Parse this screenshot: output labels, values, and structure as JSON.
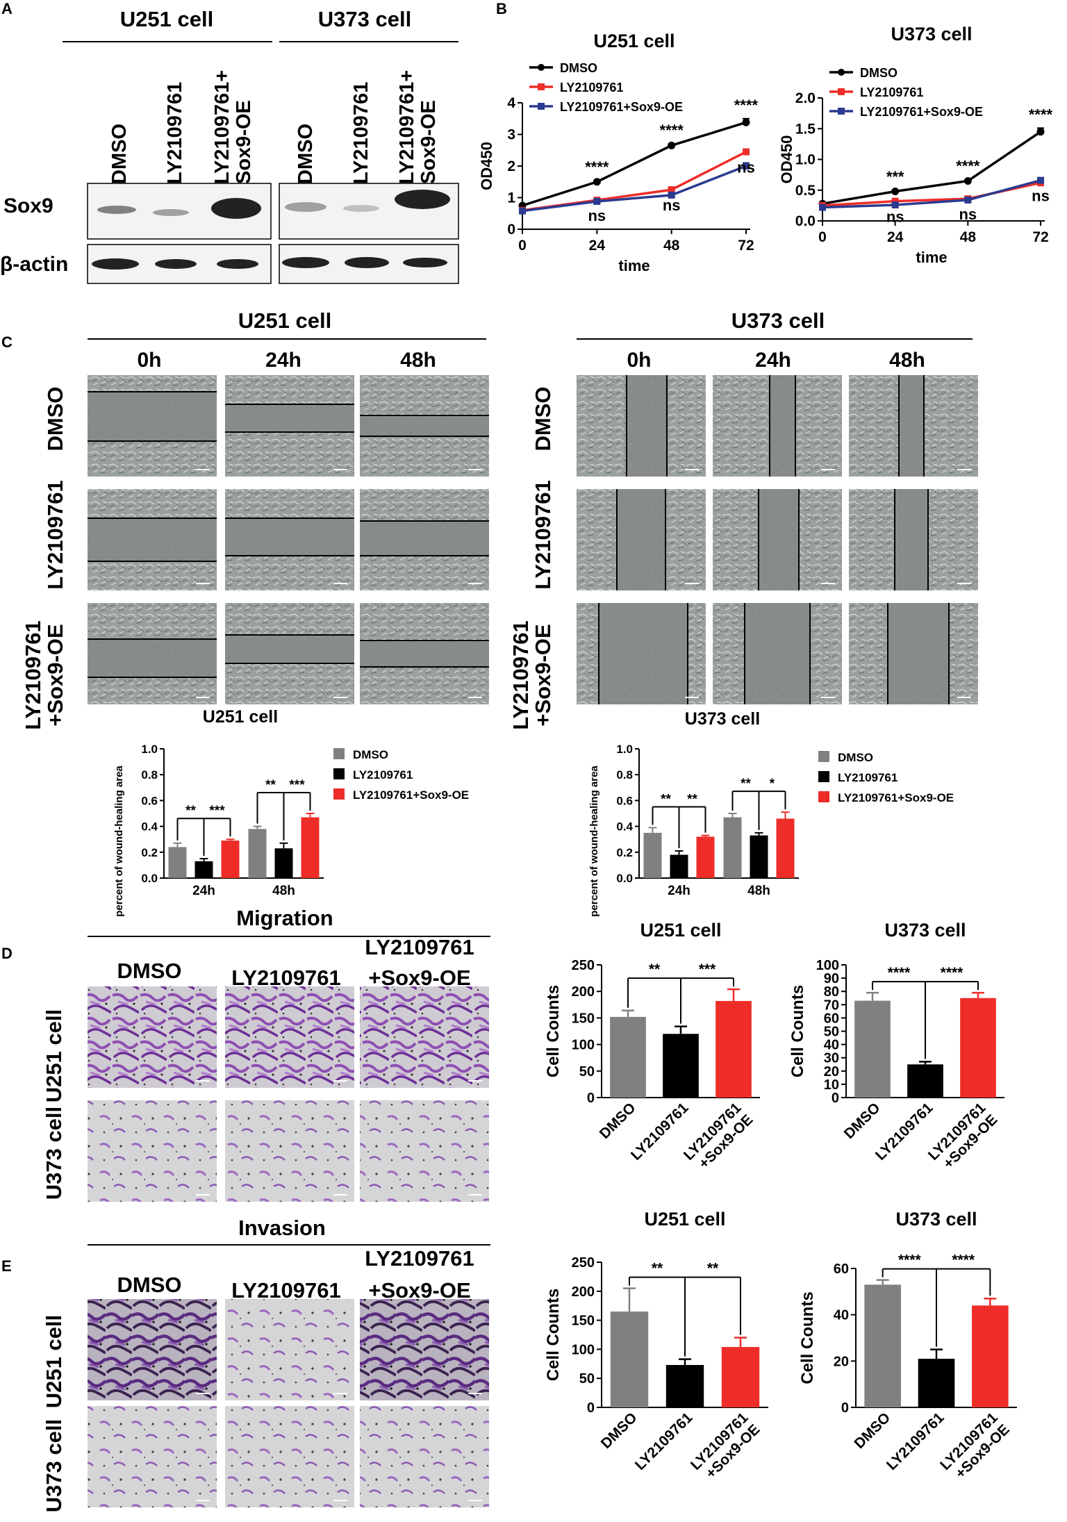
{
  "colors": {
    "dmso": "#808080",
    "ly": "#000000",
    "oe": "#ee2d29",
    "oe_line": "#2b3a8f",
    "purple": "#7a3fa2",
    "field": "#8c9190"
  },
  "panels": {
    "A": {
      "letter": "A",
      "cells": [
        "U251 cell",
        "U373 cell"
      ],
      "lanes": [
        "DMSO",
        "LY2109761",
        "LY2109761+",
        "Sox9-OE"
      ],
      "rows": [
        "Sox9",
        "β-actin"
      ]
    },
    "C": {
      "letter": "C",
      "cells": [
        "U251 cell",
        "U373 cell"
      ],
      "times": [
        "0h",
        "24h",
        "48h"
      ],
      "rows": [
        "DMSO",
        "LY2109761",
        "LY2109761",
        "+Sox9-OE"
      ]
    },
    "D": {
      "letter": "D",
      "title": "Migration",
      "cols": [
        "DMSO",
        "LY2109761",
        "LY2109761",
        "+Sox9-OE"
      ],
      "rows": [
        "U251 cell",
        "U373 cell"
      ]
    },
    "E": {
      "letter": "E",
      "title": "Invasion",
      "cols": [
        "DMSO",
        "LY2109761",
        "LY2109761",
        "+Sox9-OE"
      ],
      "rows": [
        "U251 cell",
        "U373 cell"
      ]
    }
  },
  "chart_data": [
    {
      "id": "B-U251",
      "panel": "B",
      "type": "line",
      "title": "U251 cell",
      "xlabel": "time",
      "ylabel": "OD450",
      "x": [
        0,
        24,
        48,
        72
      ],
      "ylim": [
        0,
        4
      ],
      "yticks": [
        0,
        1,
        2,
        3,
        4
      ],
      "series": [
        {
          "name": "DMSO",
          "values": [
            0.75,
            1.5,
            2.65,
            3.38
          ],
          "errors": [
            0.03,
            0.04,
            0.05,
            0.12
          ]
        },
        {
          "name": "LY2109761",
          "values": [
            0.6,
            0.92,
            1.25,
            2.45
          ],
          "errors": [
            0.03,
            0.04,
            0.05,
            0.08
          ]
        },
        {
          "name": "LY2109761+Sox9-OE",
          "values": [
            0.58,
            0.88,
            1.08,
            2.0
          ],
          "errors": [
            0.03,
            0.04,
            0.06,
            0.1
          ]
        }
      ],
      "annotations": [
        {
          "x": 24,
          "upper": "****",
          "lower": "ns"
        },
        {
          "x": 48,
          "upper": "****",
          "lower": "ns"
        },
        {
          "x": 72,
          "upper": "****",
          "lower": "ns"
        }
      ]
    },
    {
      "id": "B-U373",
      "panel": "B",
      "type": "line",
      "title": "U373 cell",
      "xlabel": "time",
      "ylabel": "OD450",
      "x": [
        0,
        24,
        48,
        72
      ],
      "ylim": [
        0,
        2
      ],
      "yticks": [
        0.0,
        0.5,
        1.0,
        1.5,
        2.0
      ],
      "series": [
        {
          "name": "DMSO",
          "values": [
            0.28,
            0.48,
            0.65,
            1.45
          ],
          "errors": [
            0.02,
            0.02,
            0.02,
            0.06
          ]
        },
        {
          "name": "LY2109761",
          "values": [
            0.25,
            0.32,
            0.36,
            0.62
          ],
          "errors": [
            0.02,
            0.02,
            0.02,
            0.04
          ]
        },
        {
          "name": "LY2109761+Sox9-OE",
          "values": [
            0.22,
            0.26,
            0.34,
            0.66
          ],
          "errors": [
            0.02,
            0.02,
            0.02,
            0.04
          ]
        }
      ],
      "annotations": [
        {
          "x": 24,
          "upper": "***",
          "lower": "ns"
        },
        {
          "x": 48,
          "upper": "****",
          "lower": "ns"
        },
        {
          "x": 72,
          "upper": "****",
          "lower": "ns"
        }
      ]
    },
    {
      "id": "C-U251",
      "panel": "C",
      "type": "bar",
      "title": "U251 cell",
      "ylabel": "percent of wound-healing area",
      "categories": [
        "24h",
        "48h"
      ],
      "ylim": [
        0,
        1.0
      ],
      "yticks": [
        0.0,
        0.2,
        0.4,
        0.6,
        0.8,
        1.0
      ],
      "series": [
        {
          "name": "DMSO",
          "values": [
            0.24,
            0.38
          ],
          "errors": [
            0.03,
            0.02
          ]
        },
        {
          "name": "LY2109761",
          "values": [
            0.13,
            0.23
          ],
          "errors": [
            0.02,
            0.04
          ]
        },
        {
          "name": "LY2109761+Sox9-OE",
          "values": [
            0.29,
            0.47
          ],
          "errors": [
            0.01,
            0.03
          ]
        }
      ],
      "significance": [
        [
          "**",
          "***"
        ],
        [
          "**",
          "***"
        ]
      ]
    },
    {
      "id": "C-U373",
      "panel": "C",
      "type": "bar",
      "title": "U373 cell",
      "ylabel": "percent of wound-healing area",
      "categories": [
        "24h",
        "48h"
      ],
      "ylim": [
        0,
        1.0
      ],
      "yticks": [
        0.0,
        0.2,
        0.4,
        0.6,
        0.8,
        1.0
      ],
      "series": [
        {
          "name": "DMSO",
          "values": [
            0.35,
            0.47
          ],
          "errors": [
            0.04,
            0.03
          ]
        },
        {
          "name": "LY2109761",
          "values": [
            0.18,
            0.33
          ],
          "errors": [
            0.03,
            0.02
          ]
        },
        {
          "name": "LY2109761+Sox9-OE",
          "values": [
            0.32,
            0.46
          ],
          "errors": [
            0.01,
            0.05
          ]
        }
      ],
      "significance": [
        [
          "**",
          "**"
        ],
        [
          "**",
          "*"
        ]
      ]
    },
    {
      "id": "D-U251",
      "panel": "D",
      "type": "bar",
      "title": "U251 cell",
      "ylabel": "Cell Counts",
      "categories": [
        "DMSO",
        "LY2109761",
        "LY2109761\n+Sox9-OE"
      ],
      "values": [
        152,
        120,
        182
      ],
      "errors": [
        12,
        14,
        22
      ],
      "ylim": [
        0,
        250
      ],
      "yticks": [
        0,
        50,
        100,
        150,
        200,
        250
      ],
      "significance": [
        "**",
        "***"
      ]
    },
    {
      "id": "D-U373",
      "panel": "D",
      "type": "bar",
      "title": "U373 cell",
      "ylabel": "Cell Counts",
      "categories": [
        "DMSO",
        "LY2109761",
        "LY2109761\n+Sox9-OE"
      ],
      "values": [
        73,
        25,
        75
      ],
      "errors": [
        6,
        2,
        4
      ],
      "ylim": [
        0,
        100
      ],
      "yticks": [
        0,
        10,
        20,
        30,
        40,
        50,
        60,
        70,
        80,
        90,
        100
      ],
      "significance": [
        "****",
        "****"
      ]
    },
    {
      "id": "E-U251",
      "panel": "E",
      "type": "bar",
      "title": "U251 cell",
      "ylabel": "Cell Counts",
      "categories": [
        "DMSO",
        "LY2109761",
        "LY2109761\n+Sox9-OE"
      ],
      "values": [
        165,
        73,
        104
      ],
      "errors": [
        40,
        10,
        16
      ],
      "ylim": [
        0,
        250
      ],
      "yticks": [
        0,
        50,
        100,
        150,
        200,
        250
      ],
      "significance": [
        "**",
        "**"
      ]
    },
    {
      "id": "E-U373",
      "panel": "E",
      "type": "bar",
      "title": "U373 cell",
      "ylabel": "Cell Counts",
      "categories": [
        "DMSO",
        "LY2109761",
        "LY2109761\n+Sox9-OE"
      ],
      "values": [
        53,
        21,
        44
      ],
      "errors": [
        2,
        4,
        3
      ],
      "ylim": [
        0,
        60
      ],
      "yticks": [
        0,
        20,
        40,
        60
      ],
      "significance": [
        "****",
        "****"
      ]
    }
  ]
}
